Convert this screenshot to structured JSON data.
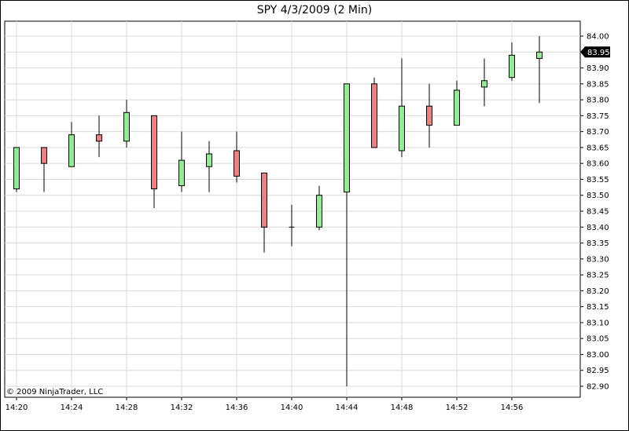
{
  "chart_data": {
    "type": "candlestick",
    "title": "SPY  4/3/2009 (2 Min)",
    "copyright": "© 2009 NinjaTrader, LLC",
    "ylim": [
      82.9,
      84.0
    ],
    "y_ticks": [
      "84.00",
      "83.95",
      "83.90",
      "83.85",
      "83.80",
      "83.75",
      "83.70",
      "83.65",
      "83.60",
      "83.55",
      "83.50",
      "83.45",
      "83.40",
      "83.35",
      "83.30",
      "83.25",
      "83.20",
      "83.15",
      "83.10",
      "83.05",
      "83.00",
      "82.95",
      "82.90"
    ],
    "x_ticks": [
      "14:20",
      "14:24",
      "14:28",
      "14:32",
      "14:36",
      "14:40",
      "14:44",
      "14:48",
      "14:52",
      "14:56"
    ],
    "last_price": "83.95",
    "grid": true,
    "up_color": "#90ee90",
    "down_color": "#f08080",
    "candles": [
      {
        "time": "14:20",
        "open": 83.52,
        "high": 83.65,
        "low": 83.51,
        "close": 83.65
      },
      {
        "time": "14:22",
        "open": 83.65,
        "high": 83.65,
        "low": 83.51,
        "close": 83.6
      },
      {
        "time": "14:24",
        "open": 83.59,
        "high": 83.73,
        "low": 83.59,
        "close": 83.69
      },
      {
        "time": "14:26",
        "open": 83.69,
        "high": 83.75,
        "low": 83.62,
        "close": 83.67
      },
      {
        "time": "14:28",
        "open": 83.67,
        "high": 83.8,
        "low": 83.65,
        "close": 83.76
      },
      {
        "time": "14:30",
        "open": 83.75,
        "high": 83.75,
        "low": 83.46,
        "close": 83.52
      },
      {
        "time": "14:32",
        "open": 83.53,
        "high": 83.7,
        "low": 83.51,
        "close": 83.61
      },
      {
        "time": "14:34",
        "open": 83.59,
        "high": 83.67,
        "low": 83.51,
        "close": 83.63
      },
      {
        "time": "14:36",
        "open": 83.64,
        "high": 83.7,
        "low": 83.54,
        "close": 83.56
      },
      {
        "time": "14:38",
        "open": 83.57,
        "high": 83.57,
        "low": 83.32,
        "close": 83.4
      },
      {
        "time": "14:40",
        "open": 83.4,
        "high": 83.47,
        "low": 83.34,
        "close": 83.4
      },
      {
        "time": "14:42",
        "open": 83.4,
        "high": 83.53,
        "low": 83.39,
        "close": 83.5
      },
      {
        "time": "14:44",
        "open": 83.51,
        "high": 83.85,
        "low": 82.9,
        "close": 83.85
      },
      {
        "time": "14:46",
        "open": 83.85,
        "high": 83.87,
        "low": 83.65,
        "close": 83.65
      },
      {
        "time": "14:48",
        "open": 83.64,
        "high": 83.93,
        "low": 83.62,
        "close": 83.78
      },
      {
        "time": "14:50",
        "open": 83.78,
        "high": 83.85,
        "low": 83.65,
        "close": 83.72
      },
      {
        "time": "14:52",
        "open": 83.72,
        "high": 83.86,
        "low": 83.72,
        "close": 83.83
      },
      {
        "time": "14:54",
        "open": 83.84,
        "high": 83.93,
        "low": 83.78,
        "close": 83.86
      },
      {
        "time": "14:56",
        "open": 83.87,
        "high": 83.98,
        "low": 83.86,
        "close": 83.94
      },
      {
        "time": "14:58",
        "open": 83.93,
        "high": 84.0,
        "low": 83.79,
        "close": 83.95
      }
    ]
  }
}
